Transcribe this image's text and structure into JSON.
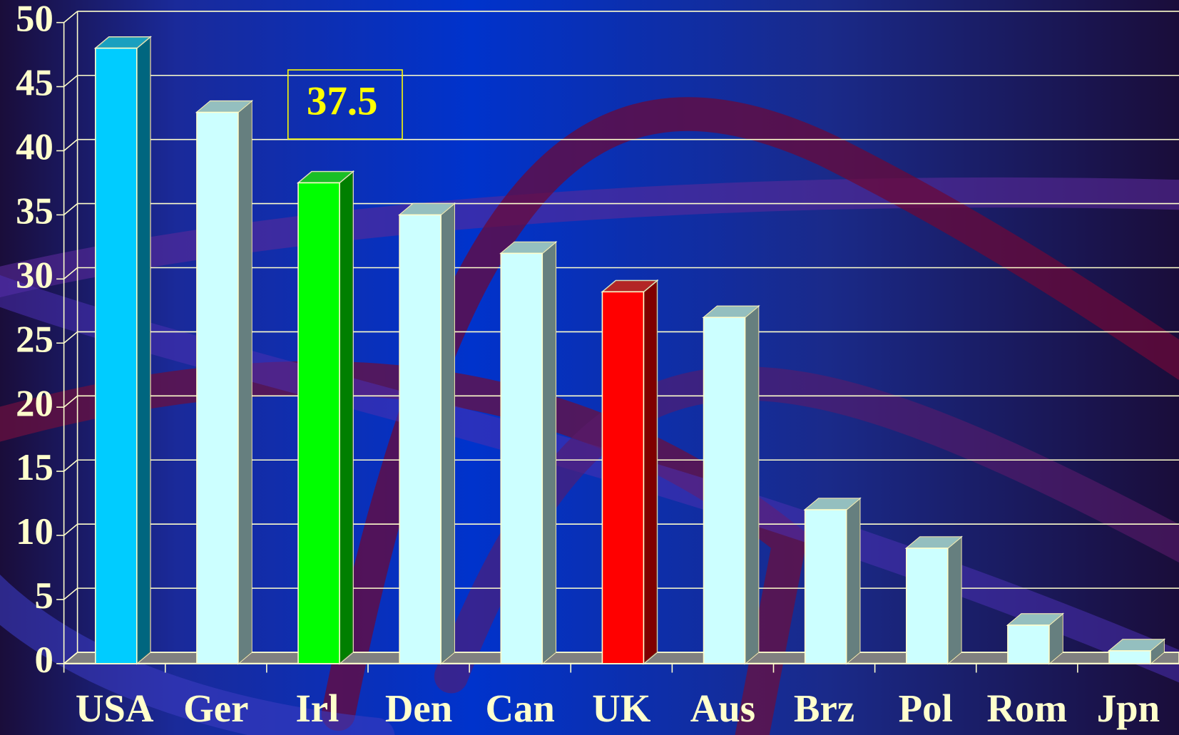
{
  "chart_data": {
    "type": "bar3d",
    "categories": [
      "USA",
      "Ger",
      "Irl",
      "Den",
      "Can",
      "UK",
      "Aus",
      "Brz",
      "Pol",
      "Rom",
      "Jpn"
    ],
    "values": [
      48,
      43,
      37.5,
      35,
      32,
      29,
      27,
      12,
      9,
      3,
      1
    ],
    "colors": [
      "#00ccff",
      "#ccffff",
      "#00ff00",
      "#ccffff",
      "#ccffff",
      "#ff0000",
      "#ccffff",
      "#ccffff",
      "#ccffff",
      "#ccffff",
      "#ccffff"
    ],
    "ylim": [
      0,
      50
    ],
    "yticks": [
      0,
      5,
      10,
      15,
      20,
      25,
      30,
      35,
      40,
      45,
      50
    ],
    "grid": true,
    "annotation": "37.5"
  }
}
